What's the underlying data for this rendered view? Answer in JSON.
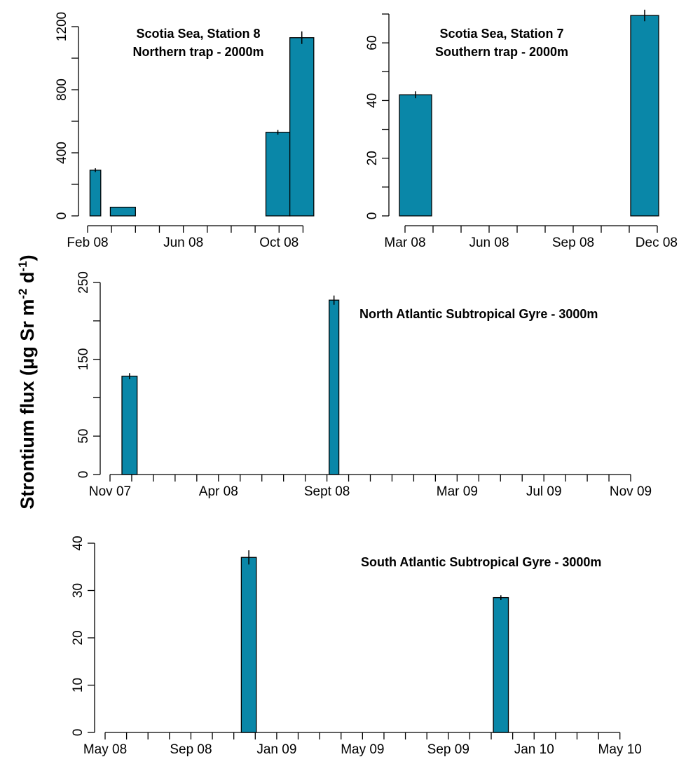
{
  "figure": {
    "ylabel_main": "Strontium flux (μg Sr m",
    "ylabel_sup1": "-2",
    "ylabel_mid": " d",
    "ylabel_sup2": "-1",
    "ylabel_end": ")"
  },
  "colors": {
    "bar": "#0A87A8",
    "axis": "#000000"
  },
  "chart_data": [
    {
      "type": "bar",
      "title": [
        "Scotia Sea, Station 8",
        "Northern trap - 2000m"
      ],
      "x_scale": "months since Feb 08",
      "xlim": [
        0,
        10.1
      ],
      "x_ticks": [
        0,
        1,
        2,
        3,
        4,
        5,
        6,
        7,
        8,
        9
      ],
      "x_tick_labels": [
        {
          "at": 0,
          "text": "Feb 08"
        },
        {
          "at": 4,
          "text": "Jun 08"
        },
        {
          "at": 8,
          "text": "Oct 08"
        }
      ],
      "ylim": [
        0,
        1200
      ],
      "y_ticks": [
        0,
        200,
        400,
        600,
        800,
        1000,
        1200
      ],
      "y_tick_labels": [
        "0",
        "400",
        "800",
        "1200"
      ],
      "bars": [
        {
          "start": 0.1,
          "end": 0.55,
          "value": 290,
          "err": 12
        },
        {
          "start": 0.95,
          "end": 2.0,
          "value": 55,
          "err": 0
        },
        {
          "start": 7.45,
          "end": 8.45,
          "value": 530,
          "err": 15
        },
        {
          "start": 8.45,
          "end": 9.45,
          "value": 1130,
          "err": 40
        }
      ]
    },
    {
      "type": "bar",
      "title": [
        "Scotia Sea, Station 7",
        "Southern trap - 2000m"
      ],
      "x_scale": "months since Mar 08",
      "xlim": [
        -0.25,
        9.05
      ],
      "x_ticks": [
        0,
        1,
        2,
        3,
        4,
        5,
        6,
        7,
        8,
        9
      ],
      "x_tick_labels": [
        {
          "at": 0,
          "text": "Mar 08"
        },
        {
          "at": 3,
          "text": "Jun 08"
        },
        {
          "at": 6,
          "text": "Sep 08"
        },
        {
          "at": 9,
          "text": "Dec 08"
        }
      ],
      "ylim": [
        0,
        70
      ],
      "y_ticks": [
        0,
        10,
        20,
        30,
        40,
        50,
        60,
        70
      ],
      "y_tick_labels": [
        "0",
        "20",
        "40",
        "60"
      ],
      "bars": [
        {
          "start": -0.2,
          "end": 0.95,
          "value": 42,
          "err": 1.2
        },
        {
          "start": 8.05,
          "end": 9.05,
          "value": 69.5,
          "err": 2
        }
      ]
    },
    {
      "type": "bar",
      "title": [
        "North Atlantic Subtropical Gyre - 3000m"
      ],
      "x_scale": "months since Nov 07",
      "xlim": [
        0,
        24
      ],
      "x_ticks": [
        0,
        1,
        2,
        3,
        4,
        5,
        6,
        7,
        8,
        9,
        10,
        11,
        12,
        13,
        14,
        15,
        16,
        17,
        18,
        19,
        20,
        21,
        22,
        23,
        24
      ],
      "x_tick_labels": [
        {
          "at": 0,
          "text": "Nov 07"
        },
        {
          "at": 5,
          "text": "Apr 08"
        },
        {
          "at": 10,
          "text": "Sept 08"
        },
        {
          "at": 16,
          "text": "Mar 09"
        },
        {
          "at": 20,
          "text": "Jul 09"
        },
        {
          "at": 24,
          "text": "Nov 09"
        }
      ],
      "ylim": [
        0,
        250
      ],
      "y_ticks": [
        0,
        50,
        100,
        150,
        200,
        250
      ],
      "y_tick_labels": [
        "0",
        "50",
        "150",
        "250"
      ],
      "bars": [
        {
          "start": 0.55,
          "end": 1.25,
          "value": 128,
          "err": 4
        },
        {
          "start": 10.1,
          "end": 10.55,
          "value": 227,
          "err": 6
        }
      ]
    },
    {
      "type": "bar",
      "title": [
        "South Atlantic Subtropical Gyre - 3000m"
      ],
      "x_scale": "months since May 08",
      "xlim": [
        0,
        24.5
      ],
      "x_ticks": [
        0,
        1,
        2,
        3,
        4,
        5,
        6,
        7,
        8,
        9,
        10,
        11,
        12,
        13,
        14,
        15,
        16,
        17,
        18,
        19,
        20,
        21,
        22,
        23,
        24
      ],
      "x_tick_labels": [
        {
          "at": 0,
          "text": "May 08"
        },
        {
          "at": 4,
          "text": "Sep 08"
        },
        {
          "at": 8,
          "text": "Jan 09"
        },
        {
          "at": 12,
          "text": "May 09"
        },
        {
          "at": 16,
          "text": "Sep 09"
        },
        {
          "at": 20,
          "text": "Jan 10"
        },
        {
          "at": 24,
          "text": "May 10"
        }
      ],
      "ylim": [
        0,
        40
      ],
      "y_ticks": [
        0,
        10,
        20,
        30,
        40
      ],
      "y_tick_labels": [
        "0",
        "10",
        "20",
        "30",
        "40"
      ],
      "bars": [
        {
          "start": 6.35,
          "end": 7.05,
          "value": 37,
          "err": 1.5
        },
        {
          "start": 18.1,
          "end": 18.8,
          "value": 28.5,
          "err": 0.5
        }
      ]
    }
  ]
}
